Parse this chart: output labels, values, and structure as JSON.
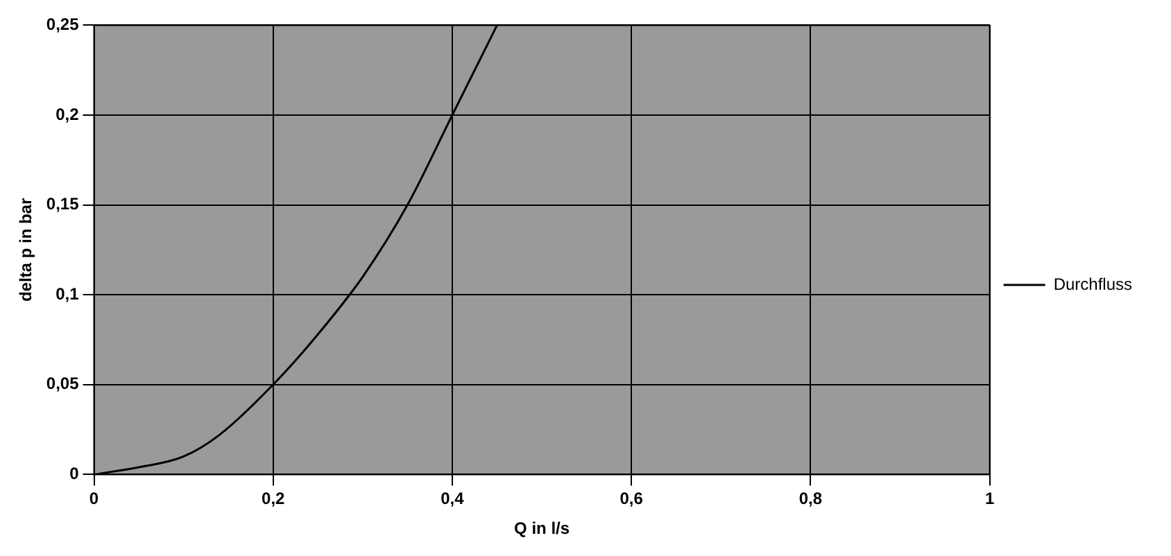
{
  "chart_data": {
    "type": "line",
    "xlabel": "Q in l/s",
    "ylabel": "delta p in bar",
    "x": [
      0,
      0.05,
      0.1,
      0.14,
      0.2,
      0.25,
      0.3,
      0.35,
      0.4,
      0.45
    ],
    "series": [
      {
        "name": "Durchfluss",
        "color": "#000000",
        "values": [
          0,
          0.004,
          0.01,
          0.022,
          0.05,
          0.078,
          0.11,
          0.15,
          0.2,
          0.25
        ]
      }
    ],
    "xlim": [
      0,
      1
    ],
    "xticks": [
      {
        "value": 0,
        "label": "0"
      },
      {
        "value": 0.2,
        "label": "0,2"
      },
      {
        "value": 0.4,
        "label": "0,4"
      },
      {
        "value": 0.6,
        "label": "0,6"
      },
      {
        "value": 0.8,
        "label": "0,8"
      },
      {
        "value": 1,
        "label": "1"
      }
    ],
    "ylim": [
      0,
      0.25
    ],
    "yticks": [
      {
        "value": 0,
        "label": "0"
      },
      {
        "value": 0.05,
        "label": "0,05"
      },
      {
        "value": 0.1,
        "label": "0,1"
      },
      {
        "value": 0.15,
        "label": "0,15"
      },
      {
        "value": 0.2,
        "label": "0,2"
      },
      {
        "value": 0.25,
        "label": "0,25"
      }
    ],
    "grid": true,
    "legend": "right",
    "marker": "none",
    "line_style": "solid"
  }
}
